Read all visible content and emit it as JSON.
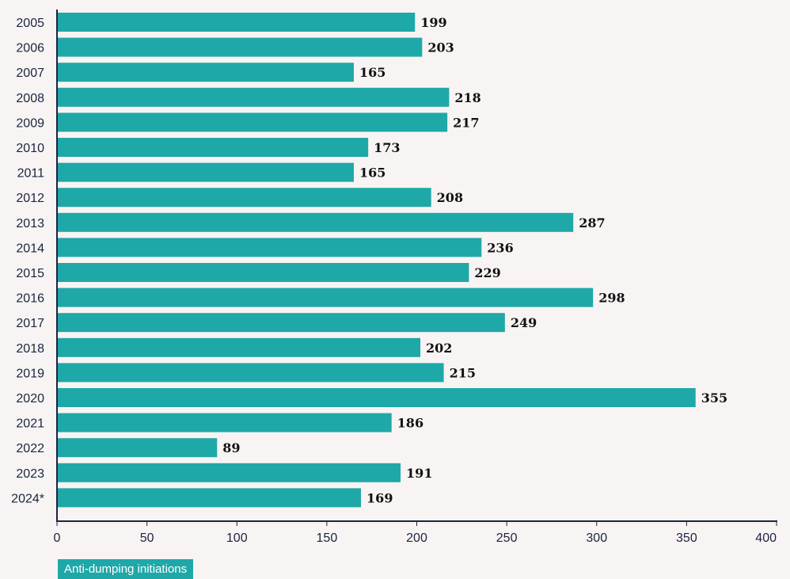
{
  "chart_data": {
    "type": "bar",
    "orientation": "horizontal",
    "categories": [
      "2005",
      "2006",
      "2007",
      "2008",
      "2009",
      "2010",
      "2011",
      "2012",
      "2013",
      "2014",
      "2015",
      "2016",
      "2017",
      "2018",
      "2019",
      "2020",
      "2021",
      "2022",
      "2023",
      "2024*"
    ],
    "series": [
      {
        "name": "Anti-dumping initiations",
        "values": [
          199,
          203,
          165,
          218,
          217,
          173,
          165,
          208,
          287,
          236,
          229,
          298,
          249,
          202,
          215,
          355,
          186,
          89,
          191,
          169
        ]
      }
    ],
    "xlim": [
      0,
      400
    ],
    "xticks": [
      0,
      50,
      100,
      150,
      200,
      250,
      300,
      350,
      400
    ],
    "data_labels": true,
    "grid": false,
    "legend_position": "bottom-left"
  },
  "colors": {
    "bar": "#1fa8a8",
    "axis": "#1a2540",
    "background": "#f8f4f3"
  }
}
